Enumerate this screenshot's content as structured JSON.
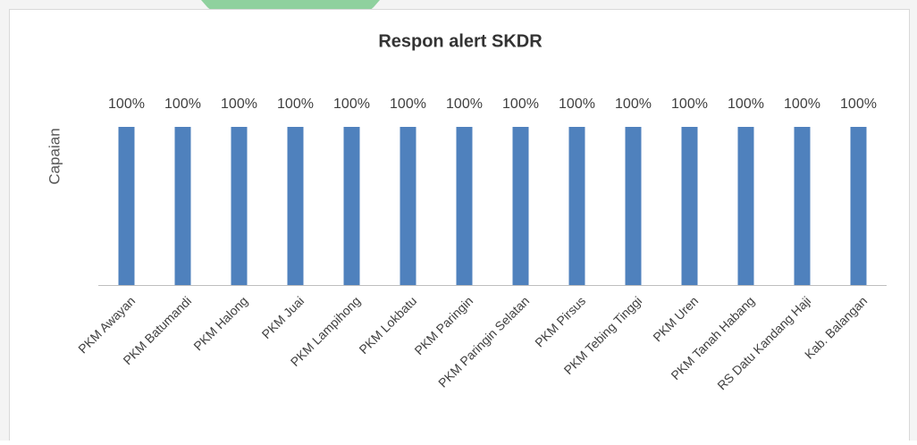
{
  "chart_data": {
    "type": "bar",
    "title": "Respon alert SKDR",
    "ylabel": "Capaian",
    "categories": [
      "PKM Awayan",
      "PKM Batumandi",
      "PKM Halong",
      "PKM Juai",
      "PKM Lampihong",
      "PKM Lokbatu",
      "PKM Paringin",
      "PKM Paringin Selatan",
      "PKM Pirsus",
      "PKM Tebing Tinggi",
      "PKM Uren",
      "PKM Tanah Habang",
      "RS Datu Kandang Haji",
      "Kab. Balangan"
    ],
    "values": [
      100,
      100,
      100,
      100,
      100,
      100,
      100,
      100,
      100,
      100,
      100,
      100,
      100,
      100
    ],
    "value_labels": [
      "100%",
      "100%",
      "100%",
      "100%",
      "100%",
      "100%",
      "100%",
      "100%",
      "100%",
      "100%",
      "100%",
      "100%",
      "100%",
      "100%"
    ],
    "color": "#4f81bd",
    "ylim": [
      0,
      100
    ]
  }
}
